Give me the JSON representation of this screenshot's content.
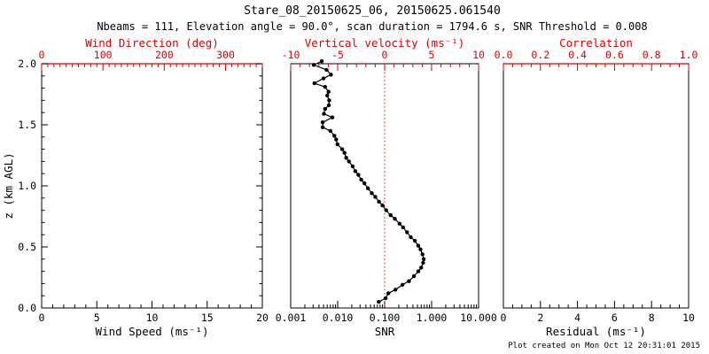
{
  "header": {
    "title": "Stare_08_20150625_06, 20150625.061540",
    "subtitle": "Nbeams = 111, Elevation angle = 90.0°, scan duration = 1794.6 s, SNR Threshold = 0.008"
  },
  "footer": {
    "created": "Plot created on Mon Oct 12 20:31:01 2015"
  },
  "colors": {
    "accent_red": "#dd0000",
    "axis_black": "#000000",
    "marker_black": "#000000",
    "background": "#ffffff"
  },
  "y_axis": {
    "label": "z (km AGL)",
    "min": 0,
    "max": 2,
    "major_ticks": [
      0,
      0.5,
      1,
      1.5,
      2
    ],
    "tick_labels": [
      "0.0",
      "0.5",
      "1.0",
      "1.5",
      "2.0"
    ],
    "minor_step": 0.1
  },
  "chart_data": {
    "type": "scatter",
    "ylabel": "z (km AGL)",
    "ylim": [
      0,
      2
    ],
    "grid": false,
    "panels": [
      {
        "name": "wind-speed",
        "top_axis": {
          "label": "Wind Direction (deg)",
          "min": 0,
          "max": 360,
          "major_ticks": [
            0,
            100,
            200,
            300
          ],
          "tick_labels": [
            "0",
            "100",
            "200",
            "300"
          ],
          "minor_step": 10,
          "red_top_line": true
        },
        "bottom_axis": {
          "label": "Wind Speed (ms⁻¹)",
          "scale": "linear",
          "min": 0,
          "max": 20,
          "major_ticks": [
            0,
            5,
            10,
            15,
            20
          ],
          "tick_labels": [
            "0",
            "5",
            "10",
            "15",
            "20"
          ],
          "minor_step": 1
        },
        "show_y_ticks": true,
        "show_y_labels": true,
        "series": []
      },
      {
        "name": "snr",
        "top_axis": {
          "label": "Vertical velocity (ms⁻¹)",
          "min": -10,
          "max": 10,
          "major_ticks": [
            -10,
            -5,
            0,
            5,
            10
          ],
          "tick_labels": [
            "-10",
            "-5",
            "0",
            "5",
            "10"
          ],
          "minor_step": 1,
          "red_top_line": false
        },
        "bottom_axis": {
          "label": "SNR",
          "scale": "log",
          "min": 0.001,
          "max": 10,
          "major_ticks": [
            0.001,
            0.01,
            0.1,
            1,
            10
          ],
          "tick_labels": [
            "0.001",
            "0.010",
            "0.100",
            "1.000",
            "10.000"
          ]
        },
        "show_y_ticks": false,
        "show_y_labels": false,
        "ref_line": {
          "top_axis_value": 0,
          "style": "dotted",
          "color": "#dd0000"
        },
        "series": [
          {
            "name": "snr-profile",
            "marker": "filled-circle",
            "points_z_snr": [
              [
                2.02,
                0.0046
              ],
              [
                1.99,
                0.0031
              ],
              [
                1.95,
                0.0058
              ],
              [
                1.91,
                0.0072
              ],
              [
                1.88,
                0.005
              ],
              [
                1.84,
                0.0032
              ],
              [
                1.81,
                0.0054
              ],
              [
                1.77,
                0.0064
              ],
              [
                1.74,
                0.006
              ],
              [
                1.7,
                0.0066
              ],
              [
                1.66,
                0.0065
              ],
              [
                1.63,
                0.0054
              ],
              [
                1.59,
                0.0051
              ],
              [
                1.56,
                0.0077
              ],
              [
                1.52,
                0.0048
              ],
              [
                1.48,
                0.0048
              ],
              [
                1.45,
                0.007
              ],
              [
                1.41,
                0.0085
              ],
              [
                1.38,
                0.0093
              ],
              [
                1.34,
                0.0099
              ],
              [
                1.3,
                0.0125
              ],
              [
                1.27,
                0.014
              ],
              [
                1.23,
                0.0152
              ],
              [
                1.2,
                0.0174
              ],
              [
                1.16,
                0.0209
              ],
              [
                1.12,
                0.0238
              ],
              [
                1.09,
                0.0276
              ],
              [
                1.05,
                0.0318
              ],
              [
                1.02,
                0.0372
              ],
              [
                0.98,
                0.0441
              ],
              [
                0.94,
                0.0533
              ],
              [
                0.91,
                0.0633
              ],
              [
                0.87,
                0.0758
              ],
              [
                0.84,
                0.09
              ],
              [
                0.8,
                0.108
              ],
              [
                0.76,
                0.134
              ],
              [
                0.73,
                0.165
              ],
              [
                0.69,
                0.208
              ],
              [
                0.66,
                0.247
              ],
              [
                0.62,
                0.3
              ],
              [
                0.58,
                0.36
              ],
              [
                0.55,
                0.44
              ],
              [
                0.51,
                0.52
              ],
              [
                0.48,
                0.58
              ],
              [
                0.44,
                0.64
              ],
              [
                0.4,
                0.68
              ],
              [
                0.37,
                0.66
              ],
              [
                0.33,
                0.6
              ],
              [
                0.3,
                0.52
              ],
              [
                0.26,
                0.42
              ],
              [
                0.22,
                0.33
              ],
              [
                0.19,
                0.24
              ],
              [
                0.15,
                0.17
              ],
              [
                0.12,
                0.12
              ],
              [
                0.08,
                0.105
              ],
              [
                0.05,
                0.075
              ]
            ]
          }
        ]
      },
      {
        "name": "residual",
        "top_axis": {
          "label": "Correlation",
          "min": 0,
          "max": 1,
          "major_ticks": [
            0,
            0.2,
            0.4,
            0.6,
            0.8,
            1
          ],
          "tick_labels": [
            "0.0",
            "0.2",
            "0.4",
            "0.6",
            "0.8",
            "1.0"
          ],
          "minor_step": 0.05,
          "red_top_line": true
        },
        "bottom_axis": {
          "label": "Residual (ms⁻¹)",
          "scale": "linear",
          "min": 0,
          "max": 10,
          "major_ticks": [
            0,
            2,
            4,
            6,
            8,
            10
          ],
          "tick_labels": [
            "0",
            "2",
            "4",
            "6",
            "8",
            "10"
          ],
          "minor_step": 0.5
        },
        "show_y_ticks": false,
        "show_y_labels": false,
        "series": []
      }
    ]
  }
}
